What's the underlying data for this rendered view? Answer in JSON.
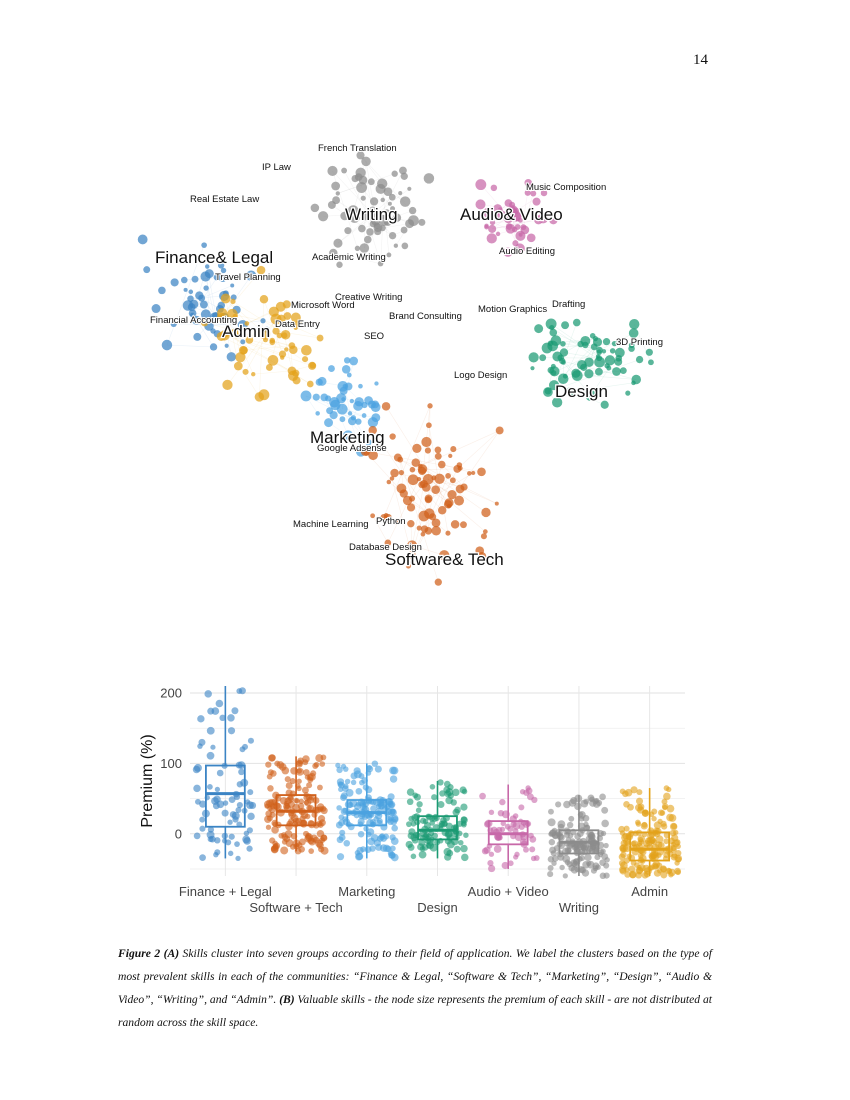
{
  "page_number": "14",
  "colors": {
    "finance_legal": "#3b84c4",
    "software_tech": "#d0601b",
    "marketing": "#4ba2e0",
    "design": "#1b9a73",
    "audio_video": "#c768a8",
    "writing": "#8c8c8c",
    "admin": "#e3a21a"
  },
  "network": {
    "cluster_labels": [
      {
        "text": "Writing",
        "cluster": "writing"
      },
      {
        "text": "Audio& Video",
        "cluster": "audio_video"
      },
      {
        "text": "Finance& Legal",
        "cluster": "finance_legal"
      },
      {
        "text": "Admin",
        "cluster": "admin"
      },
      {
        "text": "Design",
        "cluster": "design"
      },
      {
        "text": "Marketing",
        "cluster": "marketing"
      },
      {
        "text": "Software& Tech",
        "cluster": "software_tech"
      }
    ],
    "skill_labels": [
      "French Translation",
      "IP Law",
      "Music Composition",
      "Real Estate Law",
      "Audio Editing",
      "Academic Writing",
      "Travel Planning",
      "Creative Writing",
      "Microsoft Word",
      "Drafting",
      "Motion Graphics",
      "Brand Consulting",
      "Financial Accounting",
      "Data Entry",
      "3D Printing",
      "SEO",
      "Logo Design",
      "Google Adsense",
      "Machine Learning",
      "Python",
      "Database Design"
    ]
  },
  "chart_data": {
    "type": "box",
    "ylabel": "Premium (%)",
    "yticks": [
      0,
      100,
      200
    ],
    "ylim": [
      -60,
      210
    ],
    "grid": true,
    "categories": [
      "Finance + Legal",
      "Software + Tech",
      "Marketing",
      "Design",
      "Audio + Video",
      "Writing",
      "Admin"
    ],
    "series": [
      {
        "category": "Finance + Legal",
        "q1": 10,
        "median": 57,
        "q3": 97,
        "whisker_low": -35,
        "whisker_high": 210
      },
      {
        "category": "Software + Tech",
        "q1": 12,
        "median": 32,
        "q3": 55,
        "whisker_low": -25,
        "whisker_high": 110
      },
      {
        "category": "Marketing",
        "q1": 12,
        "median": 30,
        "q3": 48,
        "whisker_low": -35,
        "whisker_high": 100
      },
      {
        "category": "Design",
        "q1": -8,
        "median": 5,
        "q3": 25,
        "whisker_low": -35,
        "whisker_high": 75
      },
      {
        "category": "Audio + Video",
        "q1": -15,
        "median": 0,
        "q3": 18,
        "whisker_low": -50,
        "whisker_high": 70
      },
      {
        "category": "Writing",
        "q1": -28,
        "median": -12,
        "q3": 5,
        "whisker_low": -60,
        "whisker_high": 55
      },
      {
        "category": "Admin",
        "q1": -38,
        "median": -22,
        "q3": 2,
        "whisker_low": -60,
        "whisker_high": 65
      }
    ]
  },
  "caption": {
    "fig_label": "Figure 2 (A)",
    "part_a": " Skills cluster into seven groups according to their field of application. We label the clusters based on the type of most prevalent skills in each of the communities: “Finance & Legal, “Software & Tech”, “Marketing”, “Design”, “Audio & Video”, “Writing”, and “Admin”. ",
    "b_label": "(B)",
    "part_b": " Valuable skills - the node size represents the premium of each skill -  are not distributed at random across the skill space."
  }
}
